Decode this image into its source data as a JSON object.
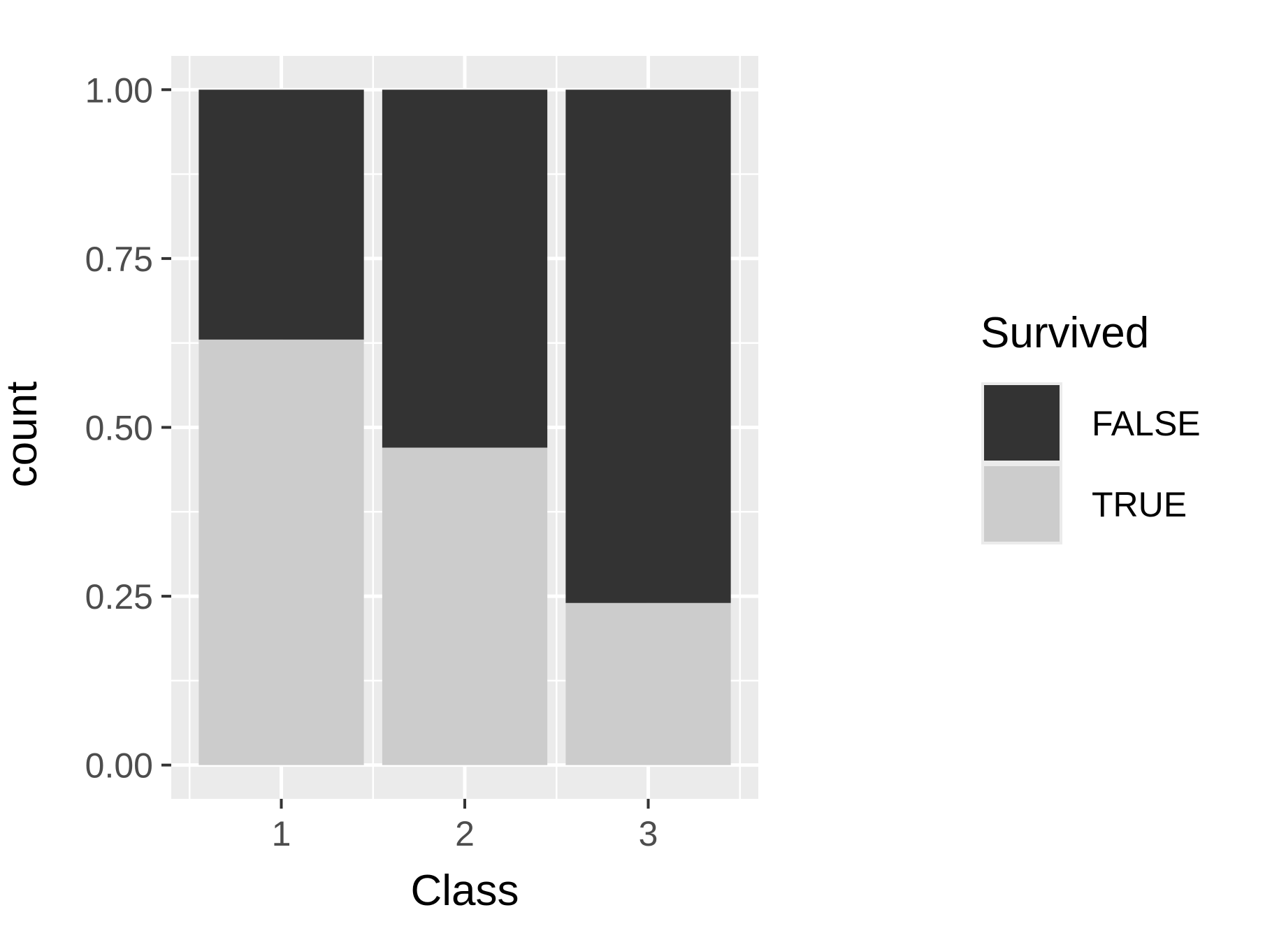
{
  "chart_data": {
    "type": "bar",
    "stacked": true,
    "categories": [
      "1",
      "2",
      "3"
    ],
    "series": [
      {
        "name": "FALSE",
        "values": [
          0.37,
          0.53,
          0.76
        ]
      },
      {
        "name": "TRUE",
        "values": [
          0.63,
          0.47,
          0.24
        ]
      }
    ],
    "stack_order": [
      "TRUE",
      "FALSE"
    ],
    "title": "",
    "xlabel": "Class",
    "ylabel": "count",
    "ylim": [
      -0.05,
      1.05
    ],
    "yticks": [
      "0.00",
      "0.25",
      "0.50",
      "0.75",
      "1.00"
    ],
    "grid": true,
    "legend": {
      "title": "Survived",
      "position": "right",
      "entries": [
        "FALSE",
        "TRUE"
      ]
    },
    "colors": {
      "FALSE": "#333333",
      "TRUE": "#cccccc",
      "panel": "#ebebeb",
      "grid": "#ffffff"
    }
  }
}
